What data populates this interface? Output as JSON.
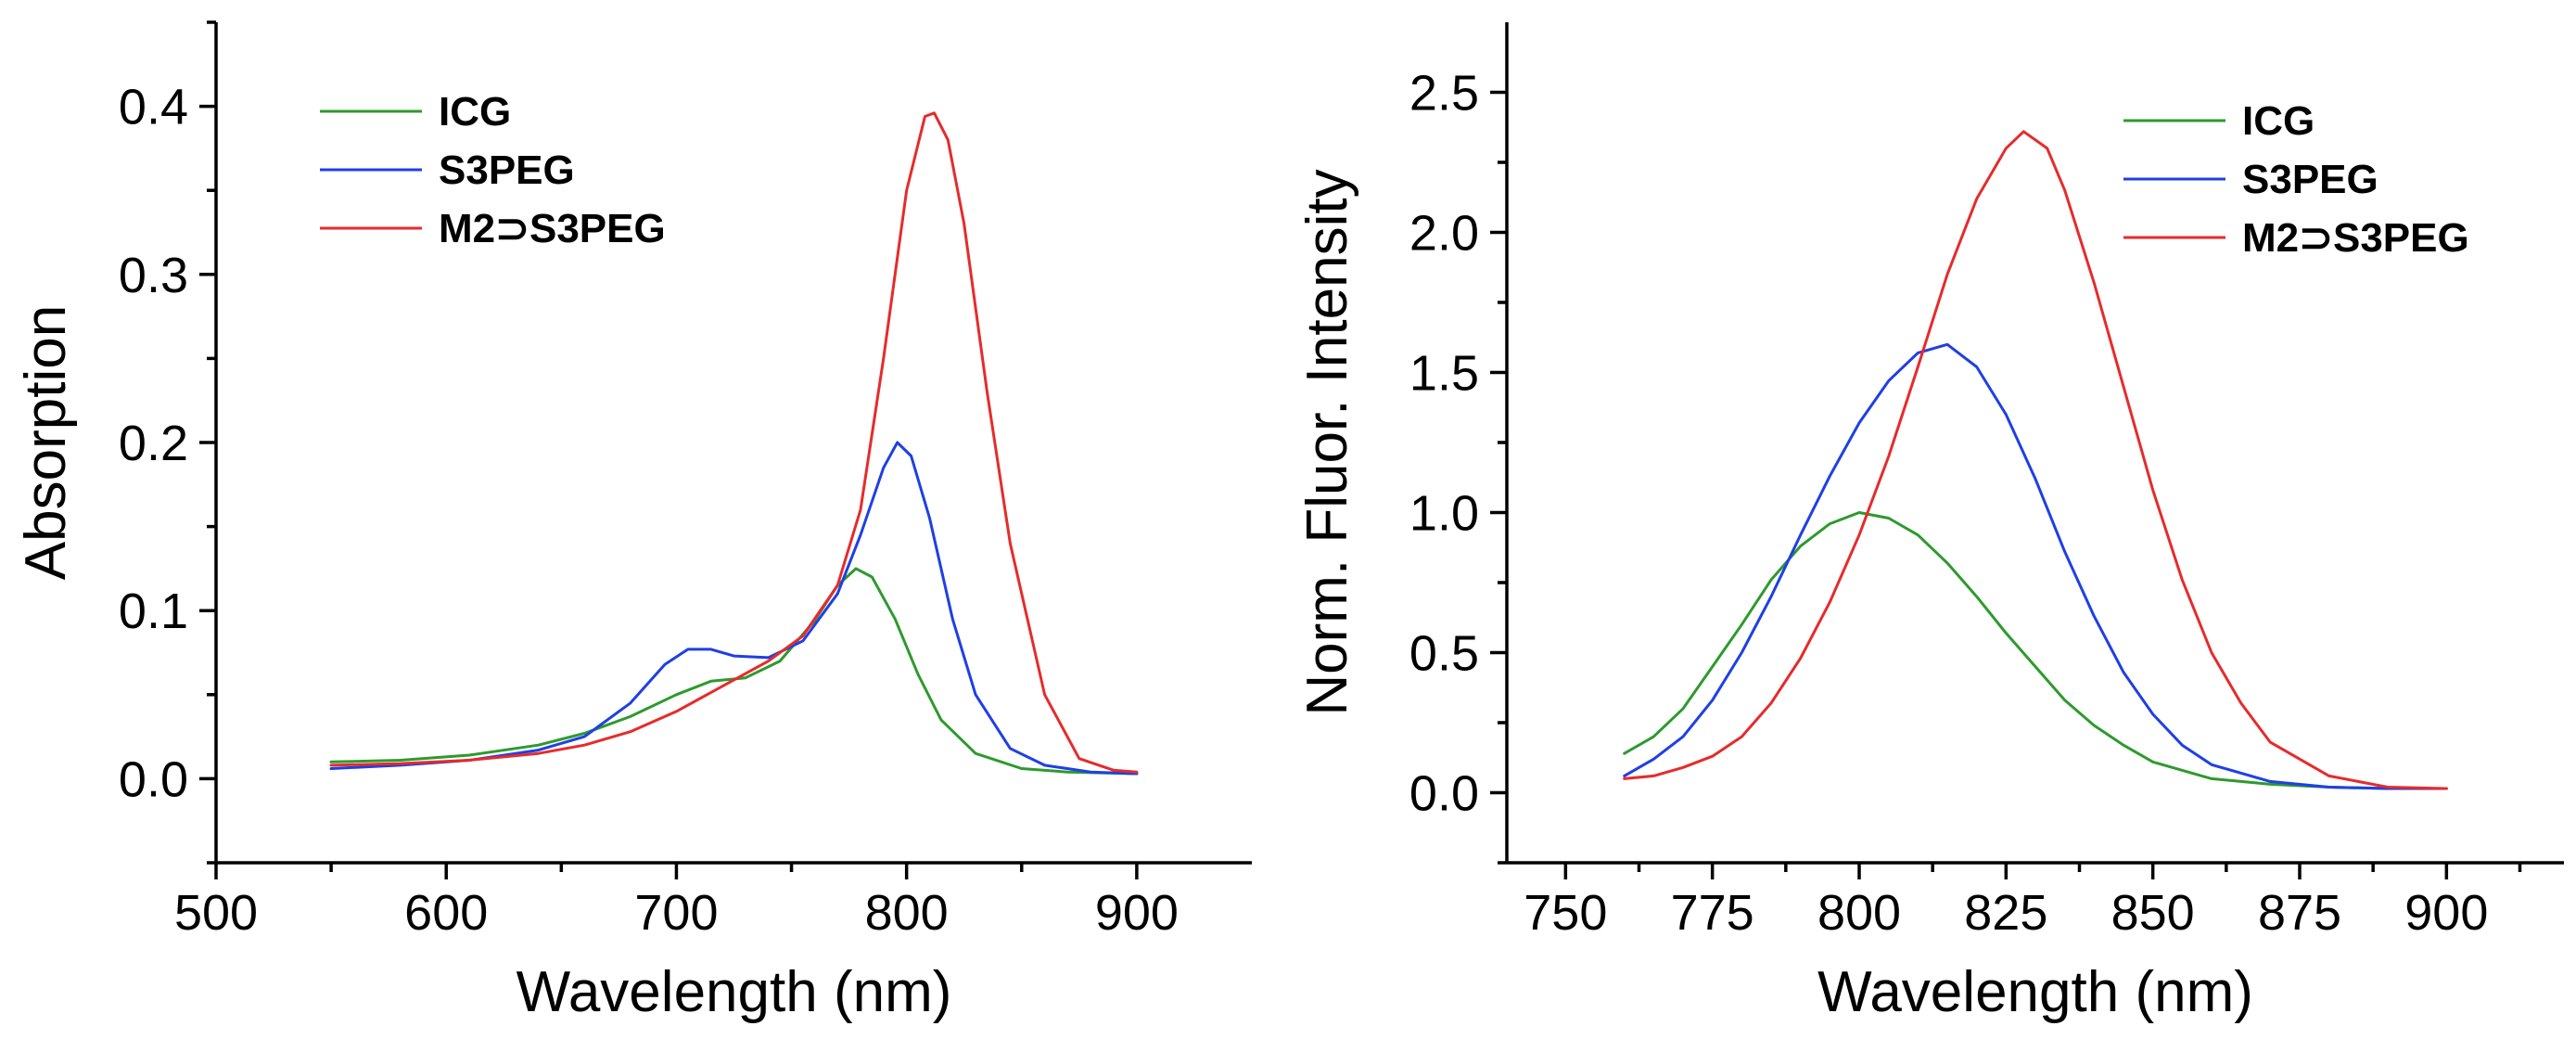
{
  "chart_data": [
    {
      "type": "line",
      "xlabel": "Wavelength (nm)",
      "ylabel": "Absorption",
      "xlim": [
        500,
        950
      ],
      "ylim": [
        -0.05,
        0.45
      ],
      "xticks": [
        500,
        600,
        700,
        800,
        900
      ],
      "xtick_labels": [
        "500",
        "600",
        "700",
        "800",
        "900"
      ],
      "yticks": [
        0.0,
        0.1,
        0.2,
        0.3,
        0.4
      ],
      "ytick_labels": [
        "0.0",
        "0.1",
        "0.2",
        "0.3",
        "0.4"
      ],
      "legend_position": "top-left",
      "series": [
        {
          "name": "ICG",
          "color": "#2e9a2e",
          "x": [
            550,
            580,
            610,
            640,
            660,
            680,
            700,
            715,
            730,
            745,
            760,
            770,
            778,
            785,
            795,
            805,
            815,
            830,
            850,
            870,
            900
          ],
          "y": [
            0.01,
            0.011,
            0.014,
            0.02,
            0.027,
            0.037,
            0.05,
            0.058,
            0.06,
            0.07,
            0.094,
            0.115,
            0.125,
            0.12,
            0.095,
            0.062,
            0.035,
            0.015,
            0.006,
            0.004,
            0.003
          ]
        },
        {
          "name": "S3PEG",
          "color": "#1f3fe6",
          "x": [
            550,
            580,
            610,
            640,
            660,
            680,
            695,
            705,
            715,
            725,
            740,
            755,
            770,
            780,
            790,
            796,
            802,
            810,
            820,
            830,
            845,
            860,
            880,
            900
          ],
          "y": [
            0.006,
            0.008,
            0.011,
            0.017,
            0.025,
            0.045,
            0.068,
            0.077,
            0.077,
            0.073,
            0.072,
            0.082,
            0.11,
            0.145,
            0.185,
            0.2,
            0.192,
            0.155,
            0.095,
            0.05,
            0.018,
            0.008,
            0.004,
            0.003
          ]
        },
        {
          "name": "M2⊃S3PEG",
          "color": "#e62b2b",
          "x": [
            550,
            580,
            610,
            640,
            660,
            680,
            700,
            720,
            740,
            755,
            770,
            780,
            790,
            800,
            808,
            812,
            818,
            825,
            835,
            845,
            860,
            875,
            890,
            900
          ],
          "y": [
            0.008,
            0.009,
            0.011,
            0.015,
            0.02,
            0.028,
            0.04,
            0.055,
            0.07,
            0.085,
            0.115,
            0.16,
            0.25,
            0.35,
            0.394,
            0.396,
            0.38,
            0.33,
            0.23,
            0.14,
            0.05,
            0.012,
            0.005,
            0.004
          ]
        }
      ]
    },
    {
      "type": "line",
      "xlabel": "Wavelength (nm)",
      "ylabel": "Norm. Fluor. Intensity",
      "xlim": [
        740,
        920
      ],
      "ylim": [
        -0.25,
        2.75
      ],
      "xticks": [
        750,
        775,
        800,
        825,
        850,
        875,
        900
      ],
      "xtick_labels": [
        "750",
        "775",
        "800",
        "825",
        "850",
        "875",
        "900"
      ],
      "yticks": [
        0.0,
        0.5,
        1.0,
        1.5,
        2.0,
        2.5
      ],
      "ytick_labels": [
        "0.0",
        "0.5",
        "1.0",
        "1.5",
        "2.0",
        "2.5"
      ],
      "legend_position": "top-right",
      "series": [
        {
          "name": "ICG",
          "color": "#2e9a2e",
          "x": [
            760,
            765,
            770,
            775,
            780,
            785,
            790,
            795,
            800,
            805,
            810,
            815,
            820,
            825,
            830,
            835,
            840,
            845,
            850,
            860,
            870,
            880,
            890,
            900
          ],
          "y": [
            0.14,
            0.2,
            0.3,
            0.45,
            0.6,
            0.76,
            0.88,
            0.96,
            1.0,
            0.98,
            0.92,
            0.82,
            0.7,
            0.57,
            0.45,
            0.33,
            0.24,
            0.17,
            0.11,
            0.05,
            0.03,
            0.02,
            0.015,
            0.015
          ]
        },
        {
          "name": "S3PEG",
          "color": "#1f3fe6",
          "x": [
            760,
            765,
            770,
            775,
            780,
            785,
            790,
            795,
            800,
            805,
            810,
            815,
            820,
            825,
            830,
            835,
            840,
            845,
            850,
            855,
            860,
            870,
            880,
            890,
            900
          ],
          "y": [
            0.06,
            0.12,
            0.2,
            0.33,
            0.5,
            0.7,
            0.92,
            1.13,
            1.32,
            1.47,
            1.57,
            1.6,
            1.52,
            1.35,
            1.12,
            0.86,
            0.63,
            0.43,
            0.28,
            0.17,
            0.1,
            0.04,
            0.02,
            0.015,
            0.015
          ]
        },
        {
          "name": "M2⊃S3PEG",
          "color": "#e62b2b",
          "x": [
            760,
            765,
            770,
            775,
            780,
            785,
            790,
            795,
            800,
            805,
            810,
            815,
            820,
            825,
            828,
            832,
            835,
            840,
            845,
            850,
            855,
            860,
            865,
            870,
            880,
            890,
            900
          ],
          "y": [
            0.05,
            0.06,
            0.09,
            0.13,
            0.2,
            0.32,
            0.48,
            0.68,
            0.92,
            1.2,
            1.52,
            1.85,
            2.12,
            2.3,
            2.36,
            2.3,
            2.15,
            1.82,
            1.45,
            1.08,
            0.76,
            0.5,
            0.32,
            0.18,
            0.06,
            0.02,
            0.015
          ]
        }
      ]
    }
  ]
}
